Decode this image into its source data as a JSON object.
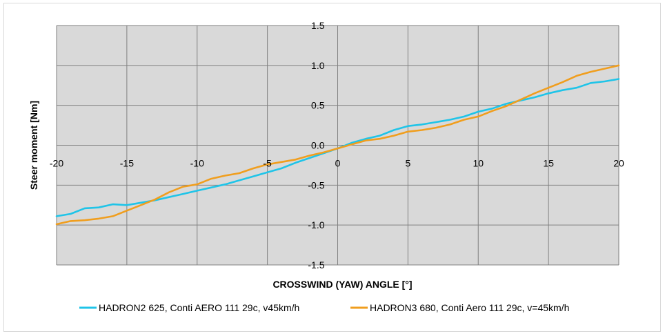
{
  "chart_data": {
    "type": "line",
    "title": "",
    "xlabel": "CROSSWIND (YAW) ANGLE  [°]",
    "ylabel": "Steer moment  [Nm]",
    "xlim": [
      -20,
      20
    ],
    "ylim": [
      -1.5,
      1.5
    ],
    "x_ticks": [
      -20,
      -15,
      -10,
      -5,
      0,
      5,
      10,
      15,
      20
    ],
    "x_tick_labels": [
      "-20",
      "-15",
      "-10",
      "-5",
      "0",
      "5",
      "10",
      "15",
      "20"
    ],
    "y_ticks": [
      1.5,
      1.0,
      0.5,
      0.0,
      -0.5,
      -1.0,
      -1.5
    ],
    "y_tick_labels": [
      "1.5",
      "1.0",
      "0.5",
      "0.0",
      "-0.5",
      "-1.0",
      "-1.5"
    ],
    "grid": true,
    "legend_position": "bottom",
    "colors": {
      "plot_bg": "#d9d9d9",
      "grid": "#808080"
    },
    "x": [
      -20,
      -19,
      -18,
      -17,
      -16,
      -15,
      -14,
      -13,
      -12,
      -11,
      -10,
      -9,
      -8,
      -7,
      -6,
      -5,
      -4,
      -3,
      -2,
      -1,
      0,
      1,
      2,
      3,
      4,
      5,
      6,
      7,
      8,
      9,
      10,
      11,
      12,
      13,
      14,
      15,
      16,
      17,
      18,
      19,
      20
    ],
    "series": [
      {
        "name": "HADRON2  625, Conti AERO 111 29c, v45km/h",
        "color": "#1fc4e8",
        "values": [
          -0.89,
          -0.86,
          -0.79,
          -0.78,
          -0.74,
          -0.75,
          -0.72,
          -0.69,
          -0.65,
          -0.61,
          -0.57,
          -0.53,
          -0.49,
          -0.44,
          -0.39,
          -0.34,
          -0.29,
          -0.22,
          -0.16,
          -0.1,
          -0.04,
          0.03,
          0.08,
          0.12,
          0.19,
          0.24,
          0.26,
          0.29,
          0.32,
          0.36,
          0.42,
          0.46,
          0.52,
          0.56,
          0.6,
          0.65,
          0.69,
          0.72,
          0.78,
          0.8,
          0.83
        ]
      },
      {
        "name": "HADRON3  680, Conti Aero 111 29c, v=45km/h",
        "color": "#f09e1e",
        "values": [
          -0.99,
          -0.95,
          -0.94,
          -0.92,
          -0.89,
          -0.82,
          -0.75,
          -0.68,
          -0.59,
          -0.52,
          -0.49,
          -0.42,
          -0.38,
          -0.35,
          -0.29,
          -0.24,
          -0.21,
          -0.18,
          -0.13,
          -0.09,
          -0.04,
          0.01,
          0.06,
          0.08,
          0.12,
          0.17,
          0.19,
          0.22,
          0.26,
          0.32,
          0.36,
          0.43,
          0.49,
          0.57,
          0.65,
          0.72,
          0.79,
          0.87,
          0.92,
          0.96,
          1.0
        ]
      }
    ]
  }
}
